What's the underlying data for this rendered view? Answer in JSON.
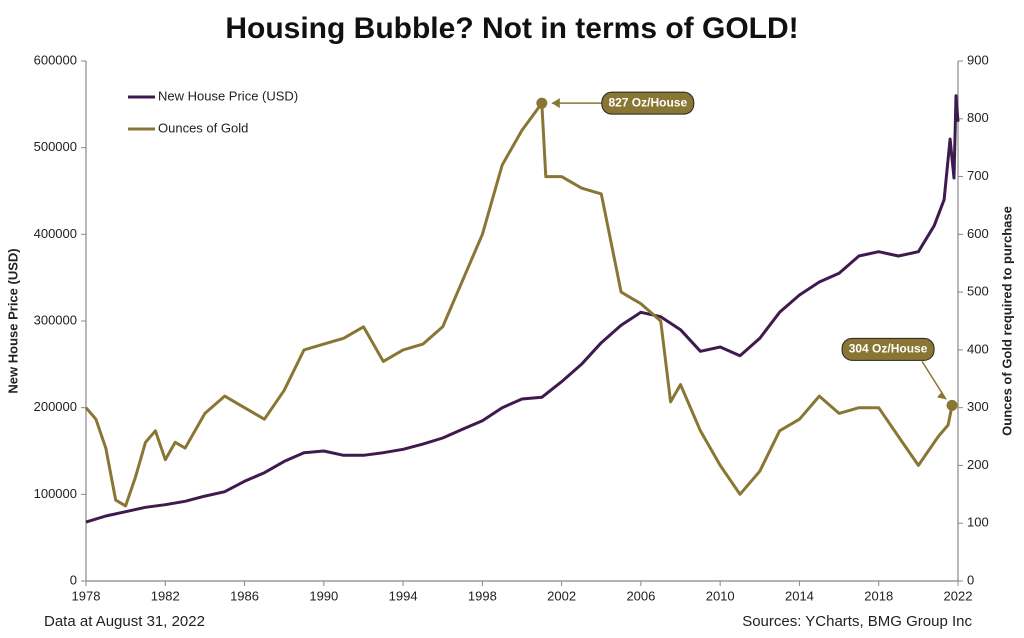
{
  "chart_data": {
    "type": "line",
    "title": "Housing Bubble?  Not in terms of GOLD!",
    "ylabel": "New House Price (USD)",
    "y2label": "Ounces of Gold required to purchase",
    "footer_left": "Data at August 31, 2022",
    "footer_right": "Sources: YCharts, BMG Group Inc",
    "legend": "upper left",
    "xlim": [
      1978,
      2022
    ],
    "xticks": [
      1978,
      1982,
      1986,
      1990,
      1994,
      1998,
      2002,
      2006,
      2010,
      2014,
      2018,
      2022
    ],
    "ylim": [
      0,
      600000
    ],
    "yticks": [
      0,
      100000,
      200000,
      300000,
      400000,
      500000,
      600000
    ],
    "y2lim": [
      0,
      900
    ],
    "y2ticks": [
      0,
      100,
      200,
      300,
      400,
      500,
      600,
      700,
      800,
      900
    ],
    "series": [
      {
        "name": "New House Price (USD)",
        "color": "#3f1a4e",
        "x": [
          1978,
          1979,
          1980,
          1981,
          1982,
          1983,
          1984,
          1985,
          1986,
          1987,
          1988,
          1989,
          1990,
          1991,
          1992,
          1993,
          1994,
          1995,
          1996,
          1997,
          1998,
          1999,
          2000,
          2001,
          2002,
          2003,
          2004,
          2005,
          2006,
          2007,
          2008,
          2009,
          2010,
          2011,
          2012,
          2013,
          2014,
          2015,
          2016,
          2017,
          2018,
          2019,
          2020,
          2020.8,
          2021.3,
          2021.6,
          2021.8,
          2021.9,
          2022
        ],
        "values": [
          68000,
          75000,
          80000,
          85000,
          88000,
          92000,
          98000,
          103000,
          115000,
          125000,
          138000,
          148000,
          150000,
          145000,
          145000,
          148000,
          152000,
          158000,
          165000,
          175000,
          185000,
          200000,
          210000,
          212000,
          230000,
          250000,
          275000,
          295000,
          310000,
          305000,
          290000,
          265000,
          270000,
          260000,
          280000,
          310000,
          330000,
          345000,
          355000,
          375000,
          380000,
          375000,
          380000,
          410000,
          440000,
          510000,
          465000,
          560000,
          530000
        ]
      },
      {
        "name": "Ounces of Gold",
        "color": "#8a7634",
        "axis": "y2",
        "x": [
          1978,
          1978.5,
          1979,
          1979.5,
          1980,
          1980.5,
          1981,
          1981.5,
          1982,
          1982.5,
          1983,
          1984,
          1985,
          1986,
          1987,
          1988,
          1989,
          1990,
          1991,
          1992,
          1993,
          1994,
          1995,
          1996,
          1997,
          1998,
          1999,
          2000,
          2001,
          2001.2,
          2002,
          2003,
          2004,
          2005,
          2006,
          2007,
          2007.5,
          2008,
          2009,
          2010,
          2011,
          2012,
          2013,
          2014,
          2015,
          2016,
          2017,
          2018,
          2019,
          2020,
          2021,
          2021.5,
          2021.7
        ],
        "values": [
          300,
          280,
          230,
          140,
          130,
          180,
          240,
          260,
          210,
          240,
          230,
          290,
          320,
          300,
          280,
          330,
          400,
          410,
          420,
          440,
          380,
          400,
          410,
          440,
          520,
          600,
          720,
          780,
          827,
          700,
          700,
          680,
          670,
          500,
          480,
          450,
          310,
          340,
          260,
          200,
          150,
          190,
          260,
          280,
          320,
          290,
          300,
          300,
          250,
          200,
          250,
          270,
          304
        ]
      }
    ],
    "annotations": [
      {
        "label": "827 Oz/House",
        "x": 2001,
        "y": 827
      },
      {
        "label": "304 Oz/House",
        "x": 2021.7,
        "y": 304
      }
    ]
  }
}
